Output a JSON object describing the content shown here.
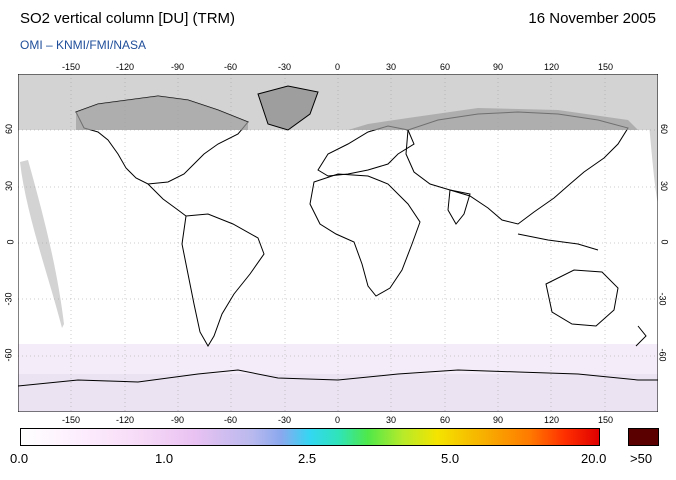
{
  "header": {
    "title": "SO2 vertical column [DU] (TRM)",
    "date": "16 November 2005",
    "subtitle": "OMI  –  KNMI/FMI/NASA"
  },
  "map": {
    "lon_ticks": [
      "-150",
      "-120",
      "-90",
      "-60",
      "-30",
      "0",
      "30",
      "60",
      "90",
      "120",
      "150"
    ],
    "lat_ticks": [
      "60",
      "30",
      "0",
      "-30",
      "-60"
    ],
    "colors": {
      "no_data_gray": "#d3d3d3",
      "land_outline": "#000000",
      "grid": "#9a9a9a"
    }
  },
  "colorbar": {
    "labels": [
      "0.0",
      "1.0",
      "2.5",
      "5.0",
      "20.0"
    ],
    "overflow_label": ">50",
    "overflow_color": "#5b0000"
  }
}
